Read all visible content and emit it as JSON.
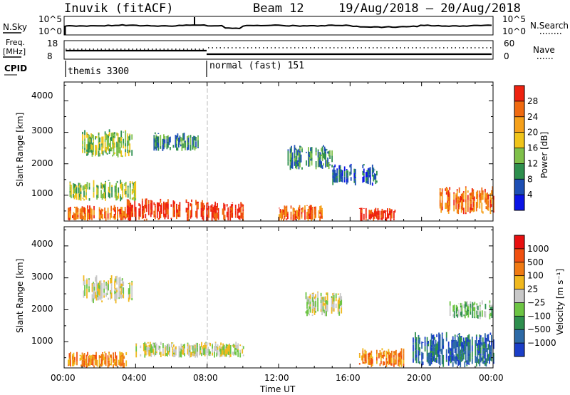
{
  "header": {
    "station": "Inuvik (fitACF)",
    "beam": "Beam 12",
    "dates": "19/Aug/2018 – 20/Aug/2018"
  },
  "side_labels": {
    "nsky": "N.Sky",
    "nsky_ticks": [
      "10^5",
      "10^0"
    ],
    "nsearch": "N.Search",
    "nsearch_ticks": [
      "10^5",
      "10^0"
    ],
    "freq_label": "Freq.",
    "freq_unit": "[MHz]",
    "freq_ticks": [
      "18",
      "8"
    ],
    "nave": "Nave",
    "nave_ticks": [
      "60",
      "0"
    ],
    "cpid": "CPID"
  },
  "cpid_modes": [
    {
      "label": "themis 3300",
      "start_hour": 0
    },
    {
      "label": "normal (fast) 151",
      "start_hour": 8
    }
  ],
  "power_panel": {
    "ylabel": "Slant Range [km]",
    "yticks": [
      "4000",
      "3000",
      "2000",
      "1000"
    ],
    "colorbar_label": "Power [dB]",
    "colorbar_ticks": [
      "28",
      "24",
      "20",
      "16",
      "12",
      "8",
      "4"
    ],
    "colors": [
      "#0a14e6",
      "#1d4fb4",
      "#2e8f4e",
      "#7fc04a",
      "#f0c419",
      "#f5a01a",
      "#f06a10",
      "#ee2210"
    ]
  },
  "velocity_panel": {
    "ylabel": "Slant Range [km]",
    "yticks": [
      "4000",
      "3000",
      "2000",
      "1000"
    ],
    "colorbar_label": "Velocity [m s⁻¹]",
    "colorbar_ticks": [
      "1000",
      "500",
      "100",
      "25",
      "−25",
      "−100",
      "−500",
      "−1000"
    ],
    "colors": [
      "#1a3ec8",
      "#2d6aa6",
      "#2e8f4e",
      "#6cc443",
      "#c8c8c8",
      "#f0b81e",
      "#f07a12",
      "#f05010",
      "#e81010"
    ]
  },
  "xaxis": {
    "ticks": [
      "00:00",
      "04:00",
      "08:00",
      "12:00",
      "16:00",
      "20:00",
      "00:00"
    ],
    "label": "Time UT"
  },
  "chart_data": {
    "type": "heatmap",
    "x_range_hours": [
      0,
      24
    ],
    "y_range_km": [
      180,
      4600
    ],
    "power_regions": [
      {
        "t0": 0.2,
        "t1": 3.5,
        "r0": 180,
        "r1": 700,
        "level": 6
      },
      {
        "t0": 3.5,
        "t1": 8.0,
        "r0": 180,
        "r1": 900,
        "level": 7
      },
      {
        "t0": 8.0,
        "t1": 10.0,
        "r0": 180,
        "r1": 800,
        "level": 7
      },
      {
        "t0": 0.3,
        "t1": 4.0,
        "r0": 800,
        "r1": 1500,
        "level": 3
      },
      {
        "t0": 1.0,
        "t1": 3.8,
        "r0": 2200,
        "r1": 3100,
        "level": 3
      },
      {
        "t0": 5.0,
        "t1": 7.5,
        "r0": 2400,
        "r1": 3000,
        "level": 2
      },
      {
        "t0": 12.5,
        "t1": 15.0,
        "r0": 1800,
        "r1": 2600,
        "level": 2
      },
      {
        "t0": 12.0,
        "t1": 14.5,
        "r0": 180,
        "r1": 700,
        "level": 6
      },
      {
        "t0": 16.5,
        "t1": 18.5,
        "r0": 180,
        "r1": 600,
        "level": 7
      },
      {
        "t0": 21.0,
        "t1": 24.0,
        "r0": 400,
        "r1": 1300,
        "level": 6
      },
      {
        "t0": 15.0,
        "t1": 17.5,
        "r0": 1300,
        "r1": 2000,
        "level": 1
      }
    ],
    "velocity_regions": [
      {
        "t0": 0.2,
        "t1": 3.5,
        "r0": 180,
        "r1": 700,
        "level": 6
      },
      {
        "t0": 4.0,
        "t1": 10.0,
        "r0": 500,
        "r1": 1000,
        "level": 4
      },
      {
        "t0": 1.0,
        "t1": 3.8,
        "r0": 2200,
        "r1": 3100,
        "level": 4
      },
      {
        "t0": 13.5,
        "t1": 15.5,
        "r0": 1800,
        "r1": 2600,
        "level": 4
      },
      {
        "t0": 16.5,
        "t1": 19.0,
        "r0": 200,
        "r1": 800,
        "level": 6
      },
      {
        "t0": 19.5,
        "t1": 24.0,
        "r0": 200,
        "r1": 1300,
        "level": 1
      },
      {
        "t0": 21.5,
        "t1": 24.0,
        "r0": 1700,
        "r1": 2300,
        "level": 3
      }
    ]
  }
}
